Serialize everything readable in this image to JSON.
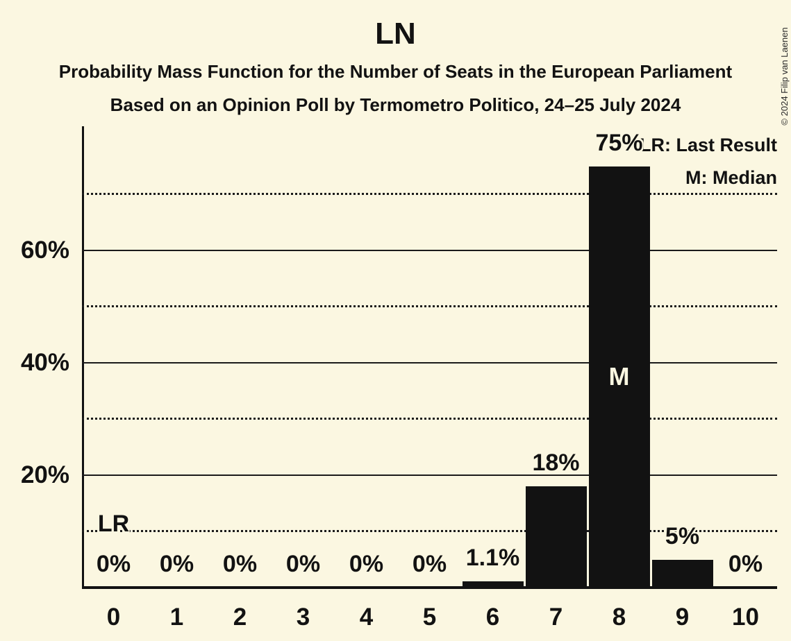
{
  "title": "LN",
  "subtitle1": "Probability Mass Function for the Number of Seats in the European Parliament",
  "subtitle2": "Based on an Opinion Poll by Termometro Politico, 24–25 July 2024",
  "copyright": "© 2024 Filip van Laenen",
  "legend": {
    "lr": "LR: Last Result",
    "m": "M: Median"
  },
  "colors": {
    "background": "#FBF7E1",
    "bar": "#121212",
    "text": "#121212",
    "gridline": "#1a1a1a",
    "bar_inner_label": "#FBF7E1"
  },
  "chart_data": {
    "type": "bar",
    "title": "LN",
    "subtitle": "Probability Mass Function for the Number of Seats in the European Parliament",
    "source_line": "Based on an Opinion Poll by Termometro Politico, 24–25 July 2024",
    "xlabel": "",
    "ylabel": "",
    "categories": [
      "0",
      "1",
      "2",
      "3",
      "4",
      "5",
      "6",
      "7",
      "8",
      "9",
      "10"
    ],
    "values": [
      0,
      0,
      0,
      0,
      0,
      0,
      1.1,
      18,
      75,
      5,
      0
    ],
    "value_labels": [
      "0%",
      "0%",
      "0%",
      "0%",
      "0%",
      "0%",
      "1.1%",
      "18%",
      "75%",
      "5%",
      "0%"
    ],
    "ylim": [
      0,
      82
    ],
    "ytick_labels": [
      {
        "pct": 20,
        "label": "20%"
      },
      {
        "pct": 40,
        "label": "40%"
      },
      {
        "pct": 60,
        "label": "60%"
      }
    ],
    "gridlines": [
      {
        "pct": 10,
        "style": "dotted"
      },
      {
        "pct": 20,
        "style": "solid"
      },
      {
        "pct": 30,
        "style": "dotted"
      },
      {
        "pct": 40,
        "style": "solid"
      },
      {
        "pct": 50,
        "style": "dotted"
      },
      {
        "pct": 60,
        "style": "solid"
      },
      {
        "pct": 70,
        "style": "dotted"
      }
    ],
    "grid": "on",
    "legend_position": "top-right",
    "median_index": 8,
    "median_marker": "M",
    "last_result_index": 0,
    "last_result_marker": "LR"
  }
}
